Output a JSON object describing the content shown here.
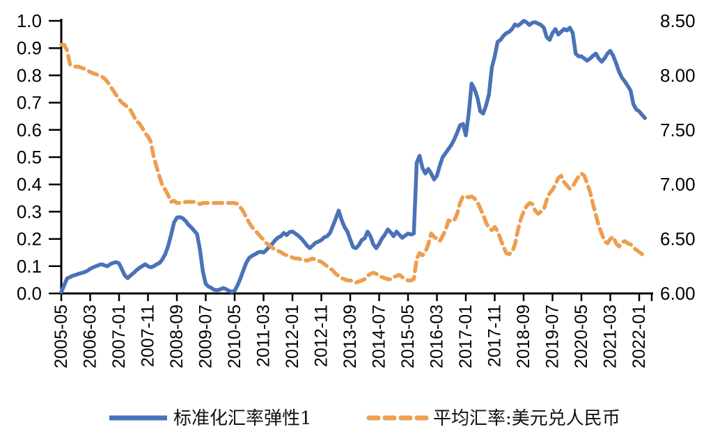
{
  "chart_data": {
    "type": "line",
    "title": "",
    "x_start_month": "2005-05",
    "x_frequency": "monthly",
    "x_tick_labels": [
      "2005-05",
      "2006-03",
      "2007-01",
      "2007-11",
      "2008-09",
      "2009-07",
      "2010-05",
      "2011-03",
      "2012-01",
      "2012-11",
      "2013-09",
      "2014-07",
      "2015-05",
      "2016-03",
      "2017-01",
      "2017-11",
      "2018-09",
      "2019-07",
      "2020-05",
      "2021-03",
      "2022-01"
    ],
    "y_left_axis": {
      "min": 0.0,
      "max": 1.0,
      "tick_step": 0.1,
      "tick_labels": [
        "0.0",
        "0.1",
        "0.2",
        "0.3",
        "0.4",
        "0.5",
        "0.6",
        "0.7",
        "0.8",
        "0.9",
        "1.0"
      ]
    },
    "y_right_axis": {
      "min": 6.0,
      "max": 8.5,
      "tick_step": 0.5,
      "tick_labels": [
        "6.00",
        "6.50",
        "7.00",
        "7.50",
        "8.00",
        "8.50"
      ]
    },
    "grid": false,
    "legend_position": "bottom",
    "series": [
      {
        "name": "标准化汇率弹性1",
        "axis": "left",
        "style": "solid",
        "color": "#4A72B8",
        "values": [
          0.005,
          0.03,
          0.055,
          0.06,
          0.065,
          0.068,
          0.072,
          0.075,
          0.078,
          0.083,
          0.09,
          0.096,
          0.1,
          0.104,
          0.107,
          0.103,
          0.1,
          0.108,
          0.112,
          0.115,
          0.11,
          0.088,
          0.066,
          0.056,
          0.066,
          0.075,
          0.085,
          0.094,
          0.1,
          0.107,
          0.1,
          0.096,
          0.1,
          0.107,
          0.112,
          0.125,
          0.145,
          0.175,
          0.215,
          0.26,
          0.278,
          0.28,
          0.276,
          0.266,
          0.252,
          0.242,
          0.23,
          0.217,
          0.16,
          0.08,
          0.035,
          0.025,
          0.02,
          0.013,
          0.012,
          0.015,
          0.02,
          0.016,
          0.01,
          0.006,
          0.01,
          0.03,
          0.055,
          0.085,
          0.112,
          0.13,
          0.138,
          0.143,
          0.15,
          0.153,
          0.15,
          0.16,
          0.172,
          0.182,
          0.195,
          0.205,
          0.21,
          0.222,
          0.214,
          0.225,
          0.227,
          0.22,
          0.212,
          0.202,
          0.19,
          0.176,
          0.166,
          0.176,
          0.186,
          0.19,
          0.196,
          0.206,
          0.21,
          0.222,
          0.248,
          0.275,
          0.304,
          0.27,
          0.244,
          0.227,
          0.198,
          0.17,
          0.166,
          0.178,
          0.196,
          0.202,
          0.227,
          0.21,
          0.18,
          0.166,
          0.182,
          0.202,
          0.216,
          0.235,
          0.224,
          0.21,
          0.227,
          0.215,
          0.204,
          0.212,
          0.22,
          0.216,
          0.22,
          0.48,
          0.505,
          0.46,
          0.44,
          0.457,
          0.44,
          0.418,
          0.432,
          0.47,
          0.5,
          0.515,
          0.53,
          0.545,
          0.565,
          0.59,
          0.617,
          0.622,
          0.58,
          0.66,
          0.77,
          0.75,
          0.719,
          0.668,
          0.66,
          0.69,
          0.73,
          0.829,
          0.87,
          0.923,
          0.93,
          0.945,
          0.955,
          0.96,
          0.97,
          0.987,
          0.982,
          0.99,
          1.0,
          0.995,
          0.985,
          0.993,
          0.995,
          0.99,
          0.985,
          0.975,
          0.94,
          0.93,
          0.955,
          0.97,
          0.95,
          0.96,
          0.97,
          0.965,
          0.975,
          0.955,
          0.88,
          0.87,
          0.87,
          0.862,
          0.854,
          0.862,
          0.872,
          0.88,
          0.862,
          0.85,
          0.862,
          0.88,
          0.89,
          0.872,
          0.845,
          0.814,
          0.792,
          0.778,
          0.762,
          0.745,
          0.694,
          0.675,
          0.668,
          0.655,
          0.643
        ]
      },
      {
        "name": "平均汇率:美元兑人民币",
        "axis": "right",
        "style": "dashed",
        "color": "#ED9E4F",
        "values": [
          8.28,
          8.28,
          8.23,
          8.1,
          8.09,
          8.08,
          8.08,
          8.07,
          8.06,
          8.05,
          8.03,
          8.02,
          8.01,
          8.0,
          7.99,
          7.97,
          7.94,
          7.9,
          7.86,
          7.82,
          7.78,
          7.75,
          7.73,
          7.71,
          7.68,
          7.63,
          7.58,
          7.56,
          7.52,
          7.47,
          7.44,
          7.39,
          7.25,
          7.16,
          7.07,
          6.99,
          6.95,
          6.9,
          6.84,
          6.85,
          6.83,
          6.83,
          6.83,
          6.84,
          6.84,
          6.84,
          6.84,
          6.83,
          6.82,
          6.83,
          6.83,
          6.83,
          6.83,
          6.83,
          6.83,
          6.83,
          6.83,
          6.83,
          6.83,
          6.83,
          6.83,
          6.82,
          6.79,
          6.75,
          6.7,
          6.65,
          6.61,
          6.58,
          6.55,
          6.52,
          6.49,
          6.46,
          6.44,
          6.42,
          6.4,
          6.39,
          6.38,
          6.36,
          6.35,
          6.34,
          6.33,
          6.32,
          6.32,
          6.31,
          6.31,
          6.3,
          6.31,
          6.32,
          6.31,
          6.3,
          6.29,
          6.27,
          6.25,
          6.23,
          6.21,
          6.18,
          6.16,
          6.14,
          6.13,
          6.12,
          6.12,
          6.11,
          6.1,
          6.11,
          6.12,
          6.13,
          6.16,
          6.18,
          6.19,
          6.18,
          6.16,
          6.15,
          6.14,
          6.13,
          6.13,
          6.15,
          6.16,
          6.17,
          6.15,
          6.13,
          6.12,
          6.12,
          6.13,
          6.32,
          6.37,
          6.35,
          6.38,
          6.45,
          6.55,
          6.52,
          6.5,
          6.48,
          6.53,
          6.58,
          6.67,
          6.66,
          6.67,
          6.73,
          6.83,
          6.89,
          6.89,
          6.88,
          6.89,
          6.87,
          6.84,
          6.78,
          6.72,
          6.65,
          6.6,
          6.58,
          6.61,
          6.57,
          6.5,
          6.43,
          6.37,
          6.36,
          6.38,
          6.45,
          6.58,
          6.68,
          6.75,
          6.8,
          6.83,
          6.82,
          6.76,
          6.73,
          6.75,
          6.77,
          6.86,
          6.92,
          6.95,
          7.0,
          7.06,
          7.08,
          7.02,
          6.99,
          6.96,
          6.98,
          7.03,
          7.07,
          7.1,
          7.08,
          7.01,
          6.93,
          6.82,
          6.72,
          6.62,
          6.55,
          6.48,
          6.46,
          6.5,
          6.52,
          6.46,
          6.43,
          6.47,
          6.48,
          6.46,
          6.45,
          6.42,
          6.4,
          6.38,
          6.36,
          6.37
        ]
      }
    ]
  },
  "colors": {
    "blue": "#4A72B8",
    "orange": "#ED9E4F",
    "axis": "#000000",
    "background": "#FFFFFF"
  }
}
